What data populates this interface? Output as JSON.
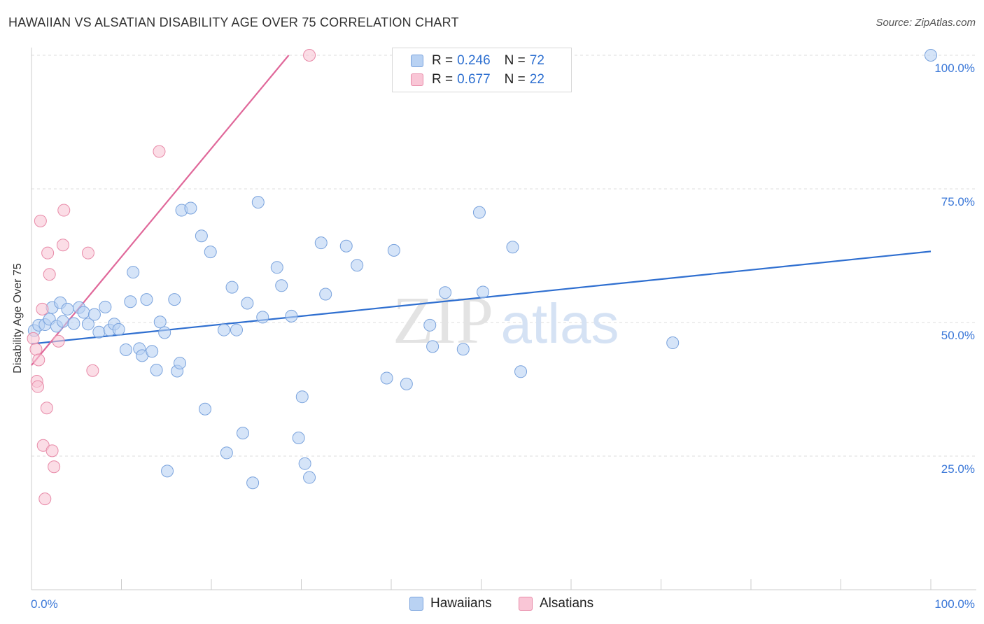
{
  "header": {
    "title": "HAWAIIAN VS ALSATIAN DISABILITY AGE OVER 75 CORRELATION CHART",
    "source": "Source: ZipAtlas.com"
  },
  "watermark": {
    "zip": "ZIP",
    "atlas": "atlas"
  },
  "legend": {
    "series": [
      {
        "name": "Hawaiians",
        "r_label": "R =",
        "r_value": "0.246",
        "n_label": "N =",
        "n_value": "72",
        "fill": "#b9d2f3",
        "stroke": "#7aa3dd"
      },
      {
        "name": "Alsatians",
        "r_label": "R =",
        "r_value": "0.677",
        "n_label": "N =",
        "n_value": "22",
        "fill": "#f9c6d6",
        "stroke": "#e88aa8"
      }
    ]
  },
  "chart_data": {
    "type": "scatter",
    "title": "HAWAIIAN VS ALSATIAN DISABILITY AGE OVER 75 CORRELATION CHART",
    "xlabel": "",
    "ylabel": "Disability Age Over 75",
    "xlim": [
      0,
      100
    ],
    "ylim": [
      0,
      100
    ],
    "x_tick_labels": [
      "0.0%",
      "100.0%"
    ],
    "y_ticks": [
      {
        "value": 25,
        "label": "25.0%"
      },
      {
        "value": 50,
        "label": "50.0%"
      },
      {
        "value": 75,
        "label": "75.0%"
      },
      {
        "value": 100,
        "label": "100.0%"
      }
    ],
    "grid": true,
    "legend_position": "top-center",
    "series": [
      {
        "name": "Hawaiians",
        "color": "#2f6fd0",
        "fill": "#b9d2f3",
        "stroke": "#7aa3dd",
        "trend": {
          "x": [
            0,
            100
          ],
          "y": [
            46.0,
            63.3
          ]
        },
        "points": [
          [
            0.3,
            48.5
          ],
          [
            0.8,
            49.5
          ],
          [
            1.5,
            49.6
          ],
          [
            2.0,
            50.6
          ],
          [
            2.3,
            52.8
          ],
          [
            2.8,
            49.3
          ],
          [
            3.2,
            53.7
          ],
          [
            3.5,
            50.2
          ],
          [
            4.0,
            52.5
          ],
          [
            4.7,
            49.8
          ],
          [
            5.3,
            52.8
          ],
          [
            5.8,
            51.9
          ],
          [
            6.3,
            49.7
          ],
          [
            7.0,
            51.5
          ],
          [
            7.5,
            48.2
          ],
          [
            8.2,
            52.9
          ],
          [
            8.7,
            48.6
          ],
          [
            9.2,
            49.7
          ],
          [
            9.7,
            48.7
          ],
          [
            10.5,
            44.9
          ],
          [
            11.0,
            53.9
          ],
          [
            11.3,
            59.4
          ],
          [
            12.0,
            45.1
          ],
          [
            12.3,
            43.8
          ],
          [
            12.8,
            54.3
          ],
          [
            13.4,
            44.6
          ],
          [
            13.9,
            41.1
          ],
          [
            14.3,
            50.1
          ],
          [
            14.8,
            48.1
          ],
          [
            15.1,
            22.2
          ],
          [
            15.9,
            54.3
          ],
          [
            16.2,
            40.9
          ],
          [
            16.5,
            42.4
          ],
          [
            16.7,
            71.0
          ],
          [
            17.7,
            71.4
          ],
          [
            18.9,
            66.2
          ],
          [
            19.3,
            33.8
          ],
          [
            19.9,
            63.2
          ],
          [
            21.4,
            48.6
          ],
          [
            21.7,
            25.6
          ],
          [
            22.3,
            56.6
          ],
          [
            22.8,
            48.6
          ],
          [
            23.5,
            29.3
          ],
          [
            24.0,
            53.6
          ],
          [
            24.6,
            20.0
          ],
          [
            25.2,
            72.5
          ],
          [
            25.7,
            51.0
          ],
          [
            27.3,
            60.3
          ],
          [
            27.8,
            56.9
          ],
          [
            28.9,
            51.2
          ],
          [
            29.7,
            28.4
          ],
          [
            30.1,
            36.1
          ],
          [
            30.4,
            23.6
          ],
          [
            30.9,
            21.0
          ],
          [
            32.2,
            64.9
          ],
          [
            32.7,
            55.3
          ],
          [
            35.0,
            64.3
          ],
          [
            36.2,
            60.7
          ],
          [
            39.5,
            39.6
          ],
          [
            40.3,
            63.5
          ],
          [
            41.7,
            38.5
          ],
          [
            44.3,
            49.5
          ],
          [
            44.6,
            45.5
          ],
          [
            46.0,
            55.6
          ],
          [
            48.0,
            45.0
          ],
          [
            49.8,
            70.6
          ],
          [
            50.2,
            55.7
          ],
          [
            53.5,
            64.1
          ],
          [
            54.4,
            40.8
          ],
          [
            71.3,
            46.2
          ],
          [
            100.0,
            100.0
          ]
        ]
      },
      {
        "name": "Alsatians",
        "color": "#e0689a",
        "fill": "#f9c6d6",
        "stroke": "#e88aa8",
        "trend": {
          "x": [
            0,
            28.6
          ],
          "y": [
            42.0,
            100
          ]
        },
        "points": [
          [
            0.2,
            47.0
          ],
          [
            0.5,
            45.0
          ],
          [
            0.6,
            39.0
          ],
          [
            0.7,
            38.0
          ],
          [
            0.8,
            43.0
          ],
          [
            1.0,
            69.0
          ],
          [
            1.2,
            52.5
          ],
          [
            1.3,
            27.0
          ],
          [
            1.5,
            17.0
          ],
          [
            1.7,
            34.0
          ],
          [
            1.8,
            63.0
          ],
          [
            2.0,
            59.0
          ],
          [
            2.3,
            26.0
          ],
          [
            2.5,
            23.0
          ],
          [
            3.0,
            46.5
          ],
          [
            3.5,
            64.5
          ],
          [
            3.6,
            71.0
          ],
          [
            6.3,
            63.0
          ],
          [
            6.8,
            41.0
          ],
          [
            14.2,
            82.0
          ],
          [
            30.9,
            100.0
          ]
        ]
      }
    ]
  }
}
